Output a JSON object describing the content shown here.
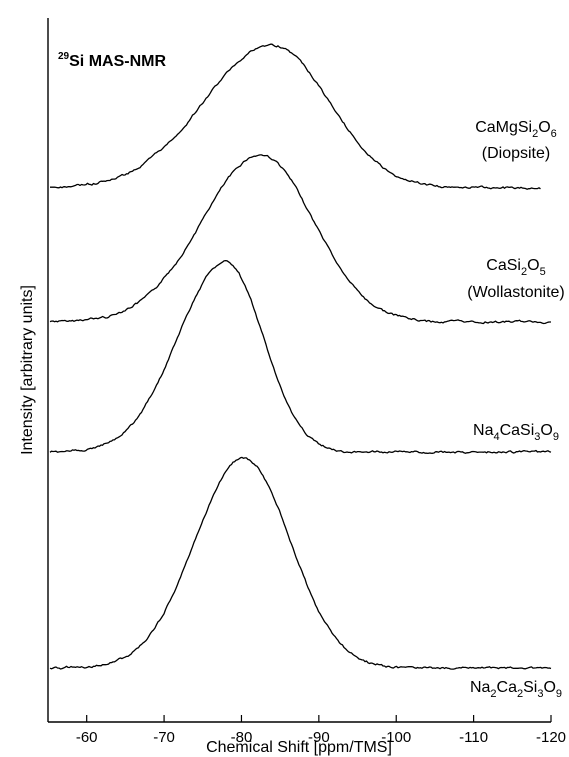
{
  "chart_data": {
    "type": "line",
    "title": {
      "sup": "29",
      "text": "Si MAS-NMR"
    },
    "xlabel": "Chemical Shift [ppm/TMS]",
    "ylabel": "Intensity  [arbitrary units]",
    "xlim": [
      -55,
      -120
    ],
    "x_ticks": [
      -60,
      -70,
      -80,
      -90,
      -100,
      -110,
      -120
    ],
    "series": [
      {
        "label_lines": [
          [
            {
              "t": "CaMgSi"
            },
            {
              "t": "2",
              "sub": true
            },
            {
              "t": "O"
            },
            {
              "t": "6",
              "sub": true
            }
          ],
          [
            {
              "t": "(Diopsite)"
            }
          ]
        ],
        "baseline": 0.0,
        "peak_height": 1.0,
        "center": -84,
        "width_left": 8.8,
        "width_right": 7.3,
        "seed": 3
      },
      {
        "label_lines": [
          [
            {
              "t": "CaSi"
            },
            {
              "t": "2",
              "sub": true
            },
            {
              "t": "O"
            },
            {
              "t": "5",
              "sub": true
            }
          ],
          [
            {
              "t": "(Wollastonite)"
            }
          ]
        ],
        "baseline": 0.0,
        "peak_height": 1.0,
        "center": -82.5,
        "width_left": 7.6,
        "width_right": 6.8,
        "seed": 7
      },
      {
        "label_lines": [
          [
            {
              "t": "Na"
            },
            {
              "t": "4",
              "sub": true
            },
            {
              "t": "CaSi"
            },
            {
              "t": "3",
              "sub": true
            },
            {
              "t": "O"
            },
            {
              "t": "9",
              "sub": true
            }
          ]
        ],
        "baseline": 0.0,
        "peak_height": 1.0,
        "center": -78,
        "width_left": 6.2,
        "width_right": 4.8,
        "seed": 11
      },
      {
        "label_lines": [
          [
            {
              "t": "Na"
            },
            {
              "t": "2",
              "sub": true
            },
            {
              "t": "Ca"
            },
            {
              "t": "2",
              "sub": true
            },
            {
              "t": "Si"
            },
            {
              "t": "3",
              "sub": true
            },
            {
              "t": "O"
            },
            {
              "t": "9",
              "sub": true
            }
          ]
        ],
        "baseline": 0.0,
        "peak_height": 1.0,
        "center": -80.3,
        "width_left": 6.3,
        "width_right": 6.0,
        "seed": 19
      }
    ]
  }
}
